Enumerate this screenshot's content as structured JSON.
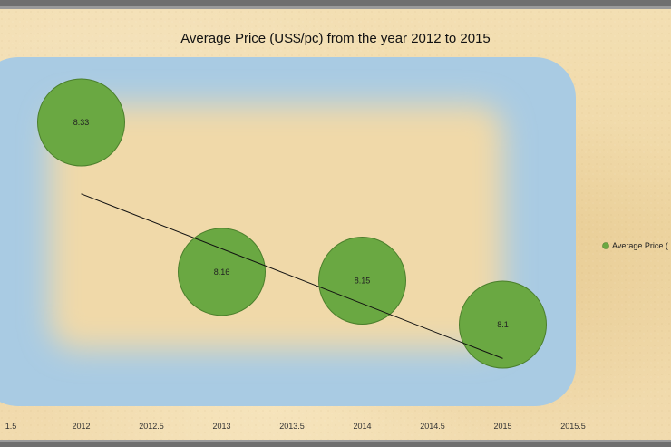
{
  "chart_data": {
    "type": "scatter",
    "title": "Average Price (US$/pc) from the year 2012 to 2015",
    "x": [
      2012,
      2013,
      2014,
      2015
    ],
    "x_tick_labels": [
      "1.5",
      "2012",
      "2012.5",
      "2013",
      "2013.5",
      "2014",
      "2014.5",
      "2015",
      "2015.5"
    ],
    "xlim": [
      2011.5,
      2015.5
    ],
    "ylim": [
      8.05,
      8.35
    ],
    "series": [
      {
        "name": "Average Price (",
        "values": [
          8.33,
          8.16,
          8.15,
          8.1
        ],
        "data_labels": [
          "8.33",
          "8.16",
          "8.15",
          "8.1"
        ],
        "color": "#6aa842",
        "border_color": "#4b7f2c"
      }
    ],
    "trendline": {
      "type": "linear",
      "color": "#111111"
    },
    "legend_position": "right",
    "plot_area_color": "#a9cbe3",
    "grid": false
  }
}
